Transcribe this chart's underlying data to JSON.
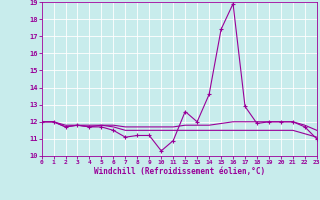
{
  "xlabel": "Windchill (Refroidissement éolien,°C)",
  "background_color": "#c8ecec",
  "grid_color": "#b0d0d0",
  "line_color": "#990099",
  "x_values": [
    0,
    1,
    2,
    3,
    4,
    5,
    6,
    7,
    8,
    9,
    10,
    11,
    12,
    13,
    14,
    15,
    16,
    17,
    18,
    19,
    20,
    21,
    22,
    23
  ],
  "line1": [
    12.0,
    12.0,
    11.7,
    11.8,
    11.7,
    11.7,
    11.5,
    11.1,
    11.2,
    11.2,
    10.3,
    10.9,
    12.6,
    12.0,
    13.6,
    17.4,
    18.9,
    12.9,
    11.9,
    12.0,
    12.0,
    12.0,
    11.7,
    11.0
  ],
  "line2": [
    12.0,
    12.0,
    11.7,
    11.8,
    11.7,
    11.8,
    11.7,
    11.5,
    11.5,
    11.5,
    11.5,
    11.5,
    11.5,
    11.5,
    11.5,
    11.5,
    11.5,
    11.5,
    11.5,
    11.5,
    11.5,
    11.5,
    11.3,
    11.1
  ],
  "line3": [
    12.0,
    12.0,
    11.8,
    11.8,
    11.8,
    11.8,
    11.8,
    11.7,
    11.7,
    11.7,
    11.7,
    11.7,
    11.8,
    11.8,
    11.8,
    11.9,
    12.0,
    12.0,
    12.0,
    12.0,
    12.0,
    12.0,
    11.8,
    11.5
  ],
  "ylim": [
    10,
    19
  ],
  "yticks": [
    10,
    11,
    12,
    13,
    14,
    15,
    16,
    17,
    18,
    19
  ],
  "xticks": [
    0,
    1,
    2,
    3,
    4,
    5,
    6,
    7,
    8,
    9,
    10,
    11,
    12,
    13,
    14,
    15,
    16,
    17,
    18,
    19,
    20,
    21,
    22,
    23
  ]
}
